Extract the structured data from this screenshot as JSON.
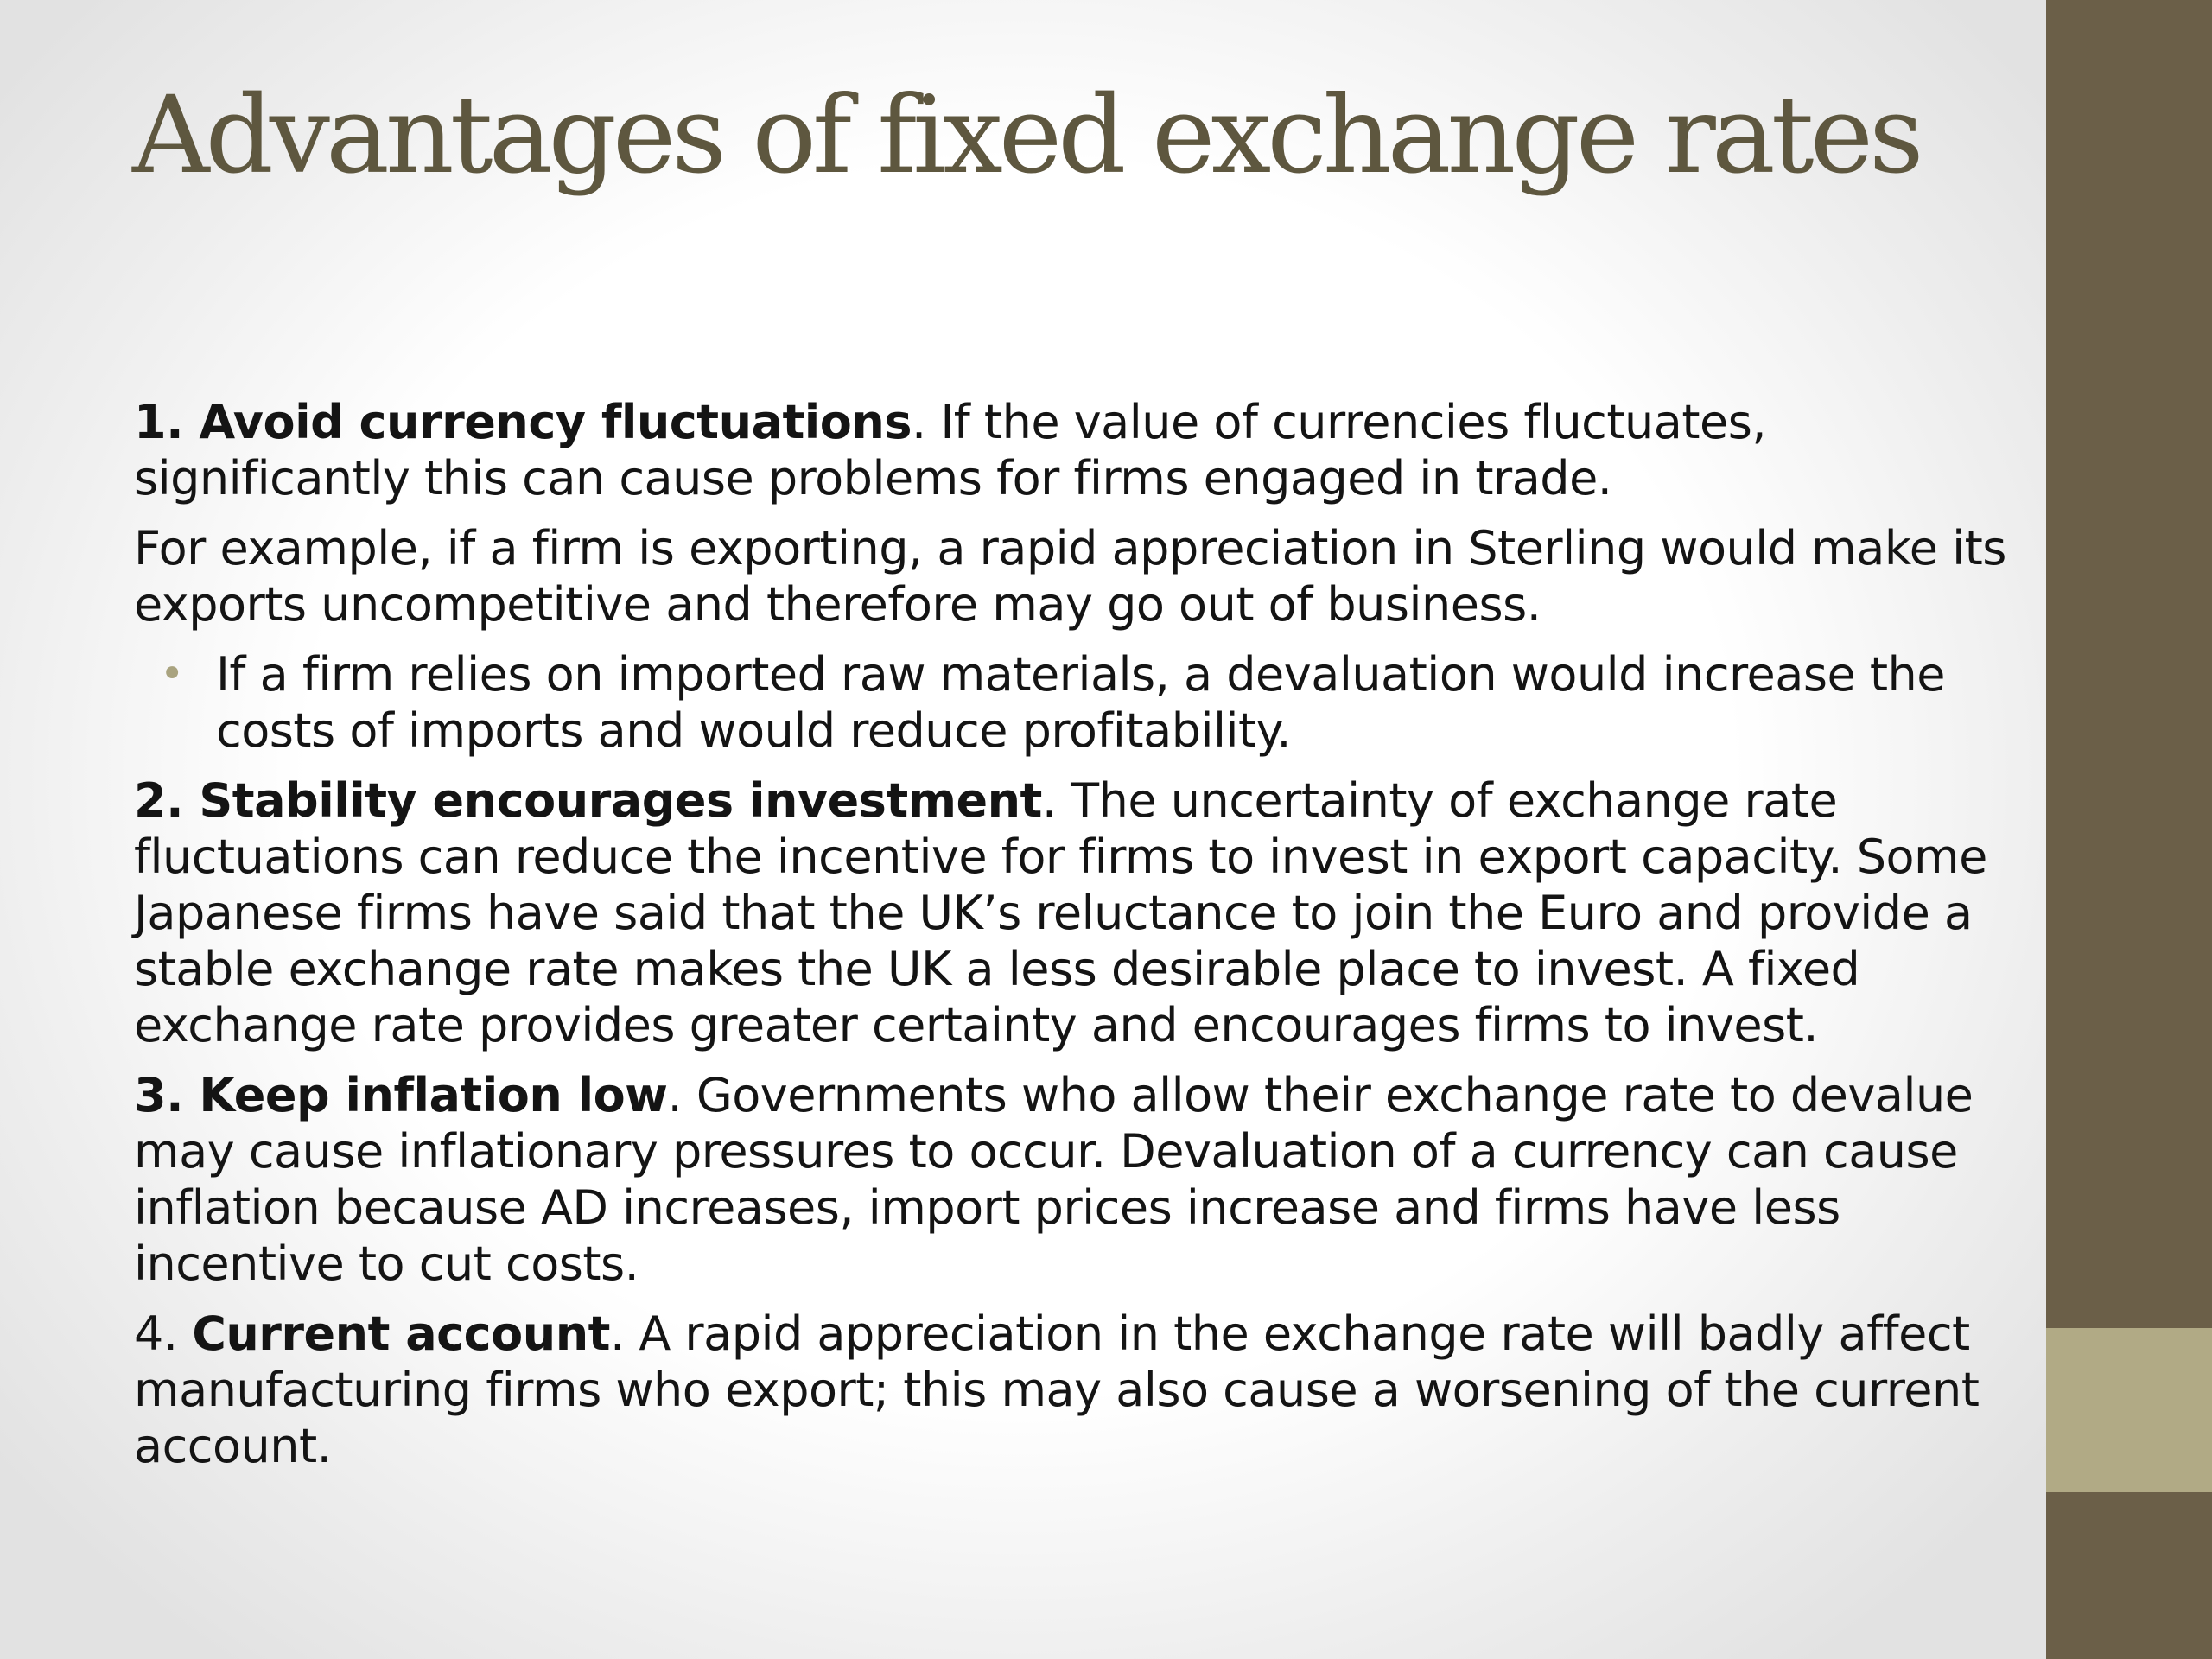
{
  "slide": {
    "title": "Advantages of fixed exchange rates",
    "points": [
      {
        "number": "1.",
        "heading": "Avoid currency fluctuations",
        "text": ". If the value of currencies fluctuates, significantly this can cause problems for firms engaged in trade."
      },
      {
        "text": "For example, if a firm is exporting, a rapid appreciation in Sterling would make its exports uncompetitive and therefore may go out of business."
      },
      {
        "bullet": "•",
        "text": "If a firm relies on imported raw materials, a devaluation would increase the costs of imports and would reduce profitability."
      },
      {
        "number": "2.",
        "heading": "Stability encourages investment",
        "text": ". The uncertainty of exchange rate fluctuations can reduce the incentive for firms to invest in export capacity. Some Japanese firms have said that the UK’s reluctance to join the Euro and provide a stable exchange rate makes the UK a less desirable place to invest. A fixed exchange rate provides greater certainty and encourages firms to invest."
      },
      {
        "number": "3.",
        "heading": "Keep inflation low",
        "text": ". Governments who allow their exchange rate to devalue may cause inflationary pressures to occur. Devaluation of a currency can cause inflation because AD increases, import prices increase and firms have less incentive to cut costs."
      },
      {
        "number": "4.",
        "heading": "Current account",
        "text": ". A rapid appreciation in the exchange rate will badly affect manufacturing firms who export; this may also cause a worsening of the current account."
      }
    ]
  },
  "colors": {
    "title": "#5e573f",
    "side_bar": "#6b5f48",
    "side_accent": "#b1aa85",
    "bullet": "#a9a37f",
    "body_text": "#141414"
  }
}
